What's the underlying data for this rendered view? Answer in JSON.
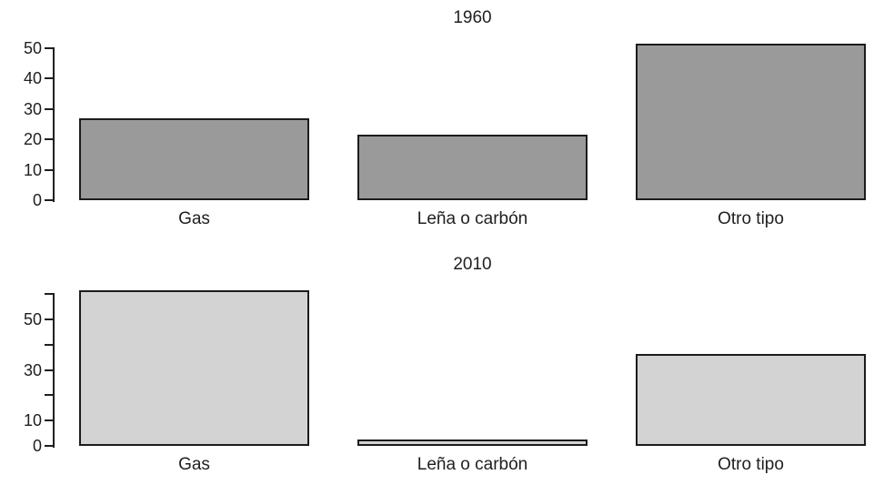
{
  "figure": {
    "background": "#ffffff",
    "text_color": "#1f1f1f"
  },
  "chart_data": [
    {
      "type": "bar",
      "title": "1960",
      "categories": [
        "Gas",
        "Leña o carbón",
        "Otro tipo"
      ],
      "values": [
        27,
        21.6,
        51.5
      ],
      "ylim": [
        0,
        50
      ],
      "yticks": [
        {
          "v": 0,
          "label": "0"
        },
        {
          "v": 10,
          "label": "10"
        },
        {
          "v": 20,
          "label": "20"
        },
        {
          "v": 30,
          "label": "30"
        },
        {
          "v": 40,
          "label": "40"
        },
        {
          "v": 50,
          "label": "50"
        }
      ],
      "xlabel": "",
      "ylabel": "",
      "grid": false,
      "legend": "none",
      "bar_color": "#9a9a9a",
      "bar_border_color": "#1c1c1c"
    },
    {
      "type": "bar",
      "title": "2010",
      "categories": [
        "Gas",
        "Leña o carbón",
        "Otro tipo"
      ],
      "values": [
        61.3,
        2.4,
        36.3
      ],
      "ylim": [
        0,
        60
      ],
      "yticks": [
        {
          "v": 0,
          "label": "0"
        },
        {
          "v": 10,
          "label": "10"
        },
        {
          "v": 20,
          "label": ""
        },
        {
          "v": 30,
          "label": "30"
        },
        {
          "v": 40,
          "label": ""
        },
        {
          "v": 50,
          "label": "50"
        },
        {
          "v": 60,
          "label": ""
        }
      ],
      "xlabel": "",
      "ylabel": "",
      "grid": false,
      "legend": "none",
      "bar_color": "#d3d3d3",
      "bar_border_color": "#1c1c1c"
    }
  ]
}
